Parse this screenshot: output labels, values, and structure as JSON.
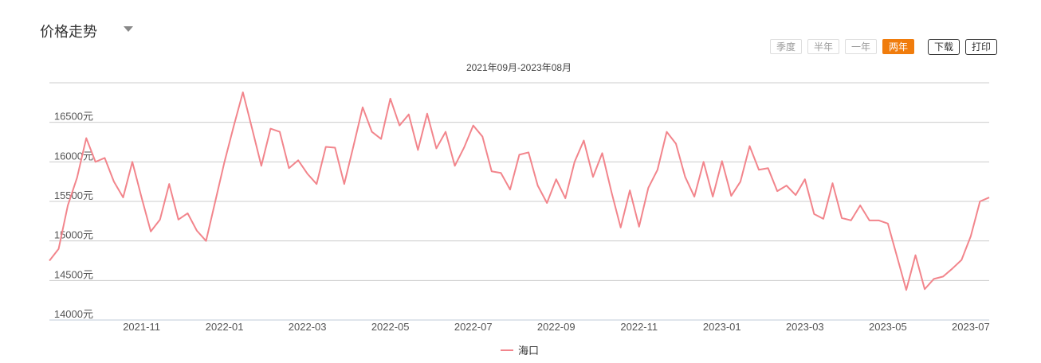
{
  "header": {
    "title": "价格走势"
  },
  "range_buttons": [
    {
      "label": "季度",
      "active": false
    },
    {
      "label": "半年",
      "active": false
    },
    {
      "label": "一年",
      "active": false
    },
    {
      "label": "两年",
      "active": true
    }
  ],
  "tools": {
    "download": "下载",
    "print": "打印"
  },
  "colors": {
    "line": "#f2858c",
    "active": "#f07c0c",
    "grid": "#cccccc"
  },
  "chart_data": {
    "type": "line",
    "subtitle": "2021年09月-2023年08月",
    "yunit": "元",
    "ylim": [
      14000,
      17000
    ],
    "yticks": [
      14000,
      14500,
      15000,
      15500,
      16000,
      16500
    ],
    "ytick_labels": [
      "14000元",
      "14500元",
      "15000元",
      "15500元",
      "16000元",
      "16500元"
    ],
    "xticks": [
      {
        "label": "2021-11",
        "index": 10
      },
      {
        "label": "2022-01",
        "index": 19
      },
      {
        "label": "2022-03",
        "index": 28
      },
      {
        "label": "2022-05",
        "index": 37
      },
      {
        "label": "2022-07",
        "index": 46
      },
      {
        "label": "2022-09",
        "index": 55
      },
      {
        "label": "2022-11",
        "index": 64
      },
      {
        "label": "2023-01",
        "index": 73
      },
      {
        "label": "2023-03",
        "index": 82
      },
      {
        "label": "2023-05",
        "index": 91
      },
      {
        "label": "2023-07",
        "index": 100
      }
    ],
    "legend": "海口",
    "grid": true,
    "legend_position": "bottom-center",
    "series": [
      {
        "name": "海口",
        "values": [
          14750,
          14900,
          15450,
          15800,
          16300,
          16000,
          16050,
          15750,
          15550,
          16000,
          15550,
          15120,
          15270,
          15720,
          15270,
          15350,
          15130,
          15000,
          15500,
          16000,
          16450,
          16880,
          16420,
          15950,
          16420,
          16380,
          15920,
          16020,
          15850,
          15720,
          16190,
          16180,
          15720,
          16200,
          16690,
          16380,
          16290,
          16800,
          16460,
          16600,
          16150,
          16610,
          16170,
          16380,
          15950,
          16180,
          16460,
          16320,
          15880,
          15860,
          15650,
          16090,
          16120,
          15700,
          15480,
          15780,
          15540,
          16000,
          16270,
          15810,
          16110,
          15620,
          15170,
          15640,
          15180,
          15670,
          15900,
          16380,
          16230,
          15810,
          15560,
          16000,
          15560,
          16010,
          15570,
          15750,
          16200,
          15900,
          15920,
          15630,
          15700,
          15580,
          15780,
          15340,
          15280,
          15730,
          15290,
          15260,
          15450,
          15260,
          15260,
          15220,
          14800,
          14380,
          14820,
          14390,
          14520,
          14550,
          14650,
          14760,
          15060,
          15500,
          15550
        ]
      }
    ]
  }
}
